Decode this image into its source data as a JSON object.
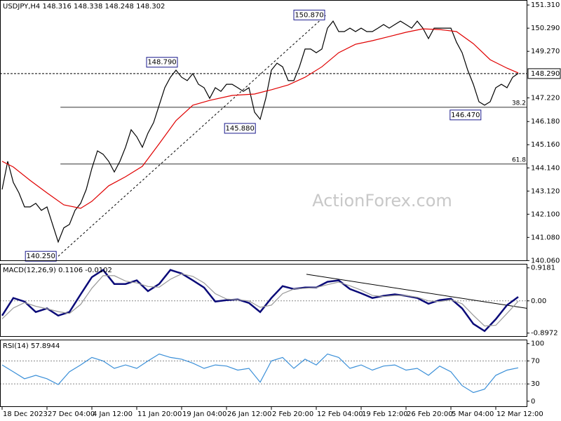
{
  "watermark": "ActionForex.com",
  "chart_data": [
    {
      "type": "line",
      "title": "USDJPY,H4  148.316 148.338 148.248 148.302",
      "xlim": [
        -0.375,
        93.625
      ],
      "ylim": [
        140.04,
        151.53
      ],
      "yticks": [
        {
          "value": 151.31,
          "label": "151.310"
        },
        {
          "value": 150.29,
          "label": "150.290"
        },
        {
          "value": 149.27,
          "label": "149.270"
        },
        {
          "value": 147.22,
          "label": "147.220"
        },
        {
          "value": 146.18,
          "label": "146.180"
        },
        {
          "value": 145.16,
          "label": "145.160"
        },
        {
          "value": 144.14,
          "label": "144.140"
        },
        {
          "value": 143.12,
          "label": "143.120"
        },
        {
          "value": 142.1,
          "label": "142.100"
        },
        {
          "value": 141.08,
          "label": "141.080"
        },
        {
          "value": 140.06,
          "label": "140.060"
        }
      ],
      "grid": false,
      "series": [
        {
          "color": "#000000",
          "x": [
            0,
            1,
            2,
            3,
            4,
            5,
            6,
            7,
            8,
            9,
            10,
            11,
            12,
            13,
            14,
            15,
            16,
            17,
            18,
            19,
            20,
            21,
            22,
            23,
            24,
            25,
            26,
            27,
            28,
            29,
            30,
            31,
            32,
            33,
            34,
            35,
            36,
            37,
            38,
            39,
            40,
            41,
            42,
            43,
            44,
            45,
            46,
            47,
            48,
            49,
            50,
            51,
            52,
            53,
            54,
            55,
            56,
            57,
            58,
            59,
            60,
            61,
            62,
            63,
            64,
            65,
            66,
            67,
            68,
            69,
            70,
            71,
            72,
            73,
            74,
            75,
            76,
            77,
            78,
            79,
            80,
            81,
            82,
            83,
            84,
            85,
            86,
            87,
            88,
            89,
            90,
            91,
            92
          ],
          "values": [
            143.19,
            144.43,
            143.5,
            143.04,
            142.42,
            142.42,
            142.58,
            142.27,
            142.42,
            141.65,
            140.88,
            141.5,
            141.65,
            142.27,
            142.58,
            143.19,
            144.12,
            144.89,
            144.74,
            144.43,
            143.96,
            144.43,
            145.05,
            145.82,
            145.51,
            145.05,
            145.67,
            146.13,
            146.9,
            147.67,
            148.13,
            148.44,
            148.13,
            147.98,
            148.29,
            147.82,
            147.67,
            147.2,
            147.67,
            147.51,
            147.82,
            147.82,
            147.67,
            147.51,
            147.67,
            146.59,
            146.28,
            147.2,
            148.44,
            148.75,
            148.59,
            147.98,
            147.98,
            148.59,
            149.37,
            149.37,
            149.21,
            149.37,
            150.29,
            150.6,
            150.14,
            150.14,
            150.29,
            150.14,
            150.29,
            150.14,
            150.14,
            150.29,
            150.45,
            150.29,
            150.45,
            150.6,
            150.45,
            150.29,
            150.6,
            150.29,
            149.83,
            150.29,
            150.29,
            150.29,
            150.29,
            149.67,
            149.21,
            148.44,
            147.82,
            147.05,
            146.9,
            147.05,
            147.67,
            147.82,
            147.67,
            148.13,
            148.3
          ]
        },
        {
          "color": "#e00000",
          "x": [
            0,
            2,
            5,
            8,
            11,
            14,
            16,
            19,
            22,
            25,
            28,
            31,
            34,
            37,
            41,
            45,
            48,
            51,
            54,
            57,
            60,
            63,
            66,
            69,
            72,
            75,
            78,
            81,
            84,
            87,
            90,
            92
          ],
          "values": [
            144.43,
            144.18,
            143.59,
            143.04,
            142.51,
            142.36,
            142.67,
            143.35,
            143.75,
            144.21,
            145.2,
            146.22,
            146.9,
            147.11,
            147.33,
            147.39,
            147.58,
            147.79,
            148.13,
            148.59,
            149.21,
            149.58,
            149.74,
            149.92,
            150.11,
            150.26,
            150.23,
            150.14,
            149.61,
            148.9,
            148.53,
            148.32
          ]
        }
      ],
      "trendline": {
        "x": [
          10,
          57.75
        ],
        "values": [
          140.25,
          150.87
        ]
      },
      "levels": [
        {
          "x": 10.4,
          "value": 146.81,
          "label": "38.2"
        },
        {
          "x": 10.4,
          "value": 144.31,
          "label": "61.8"
        }
      ],
      "last": {
        "value": 148.29,
        "label": "148.290"
      },
      "annotations": [
        {
          "x": 57.75,
          "value": 150.87,
          "label": "150.870"
        },
        {
          "x": 31.5,
          "value": 148.79,
          "label": "148.790"
        },
        {
          "x": 45.4,
          "value": 145.88,
          "label": "145.880"
        },
        {
          "x": 85.6,
          "value": 146.47,
          "label": "146.470"
        },
        {
          "x": 9.9,
          "value": 140.25,
          "label": "140.250"
        }
      ]
    },
    {
      "type": "line",
      "title": "MACD(12,26,9) 0.1106 -0.0102",
      "xlim": [
        -0.375,
        93.625
      ],
      "ylim": [
        -1.0,
        1.03
      ],
      "yticks": [
        0.9181,
        {
          "value": 0,
          "label": "0.00"
        },
        -0.8972
      ],
      "zero": 0,
      "series": [
        {
          "color": "#0a0a78",
          "x": [
            0,
            2,
            4,
            6,
            8,
            10,
            12,
            14,
            16,
            18,
            20,
            22,
            24,
            26,
            28,
            30,
            32,
            34,
            36,
            38,
            40,
            42,
            44,
            46,
            48,
            50,
            52,
            54,
            56,
            58,
            60,
            62,
            64,
            66,
            68,
            70,
            72,
            74,
            76,
            78,
            80,
            82,
            84,
            86,
            88,
            90,
            92
          ],
          "values": [
            -0.41,
            0.08,
            -0.02,
            -0.31,
            -0.21,
            -0.41,
            -0.31,
            0.18,
            0.66,
            0.86,
            0.47,
            0.47,
            0.57,
            0.27,
            0.47,
            0.86,
            0.76,
            0.57,
            0.37,
            -0.02,
            0.02,
            0.04,
            -0.06,
            -0.31,
            0.08,
            0.41,
            0.33,
            0.37,
            0.37,
            0.53,
            0.57,
            0.33,
            0.21,
            0.08,
            0.14,
            0.18,
            0.14,
            0.08,
            -0.08,
            0.02,
            0.06,
            -0.21,
            -0.64,
            -0.84,
            -0.51,
            -0.12,
            0.11
          ]
        },
        {
          "color": "#999999",
          "x": [
            0,
            2,
            4,
            6,
            8,
            10,
            12,
            14,
            16,
            18,
            20,
            22,
            24,
            26,
            28,
            30,
            32,
            34,
            36,
            38,
            40,
            42,
            44,
            46,
            48,
            50,
            52,
            54,
            56,
            58,
            60,
            62,
            64,
            66,
            68,
            70,
            72,
            74,
            76,
            78,
            80,
            82,
            84,
            86,
            88,
            90,
            92
          ],
          "values": [
            -0.5,
            -0.2,
            -0.05,
            -0.15,
            -0.22,
            -0.3,
            -0.35,
            -0.1,
            0.35,
            0.7,
            0.7,
            0.55,
            0.5,
            0.4,
            0.38,
            0.6,
            0.75,
            0.68,
            0.5,
            0.2,
            0.05,
            0.03,
            0.0,
            -0.18,
            -0.12,
            0.2,
            0.33,
            0.35,
            0.37,
            0.45,
            0.52,
            0.42,
            0.3,
            0.15,
            0.12,
            0.15,
            0.15,
            0.1,
            0.0,
            -0.02,
            0.03,
            -0.08,
            -0.4,
            -0.7,
            -0.68,
            -0.35,
            -0.01
          ]
        }
      ],
      "trendline": {
        "x": [
          54.25,
          93.625
        ],
        "values": [
          0.74,
          -0.21
        ]
      }
    },
    {
      "type": "line",
      "title": "RSI(14) 57.8944",
      "xlim": [
        -0.375,
        93.625
      ],
      "ylim": [
        -10,
        107
      ],
      "yticks": [
        100,
        70,
        30,
        0
      ],
      "levels": [
        70,
        30
      ],
      "series": [
        {
          "color": "#3a8fd8",
          "x": [
            0,
            2,
            4,
            6,
            8,
            10,
            12,
            14,
            16,
            18,
            20,
            22,
            24,
            26,
            28,
            30,
            32,
            34,
            36,
            38,
            40,
            42,
            44,
            46,
            48,
            50,
            52,
            54,
            56,
            58,
            60,
            62,
            64,
            66,
            68,
            70,
            72,
            74,
            76,
            78,
            80,
            82,
            84,
            86,
            88,
            90,
            92
          ],
          "values": [
            63,
            51,
            39,
            45,
            39,
            29,
            51,
            63,
            76,
            70,
            57,
            63,
            57,
            70,
            82,
            76,
            73,
            66,
            57,
            63,
            61,
            54,
            57,
            33,
            70,
            76,
            57,
            73,
            63,
            82,
            76,
            57,
            63,
            54,
            61,
            63,
            54,
            57,
            45,
            61,
            51,
            27,
            15,
            21,
            45,
            54,
            58
          ]
        }
      ],
      "xticks": [
        {
          "value": 0,
          "label": "18 Dec 2023"
        },
        {
          "value": 8,
          "label": "27 Dec 04:00"
        },
        {
          "value": 16,
          "label": "4 Jan 12:00"
        },
        {
          "value": 24,
          "label": "11 Jan 20:00"
        },
        {
          "value": 32,
          "label": "19 Jan 04:00"
        },
        {
          "value": 40,
          "label": "26 Jan 12:00"
        },
        {
          "value": 48,
          "label": "2 Feb 20:00"
        },
        {
          "value": 56,
          "label": "12 Feb 04:00"
        },
        {
          "value": 64,
          "label": "19 Feb 12:00"
        },
        {
          "value": 72,
          "label": "26 Feb 20:00"
        },
        {
          "value": 80,
          "label": "5 Mar 04:00"
        },
        {
          "value": 88,
          "label": "12 Mar 12:00"
        }
      ]
    }
  ]
}
